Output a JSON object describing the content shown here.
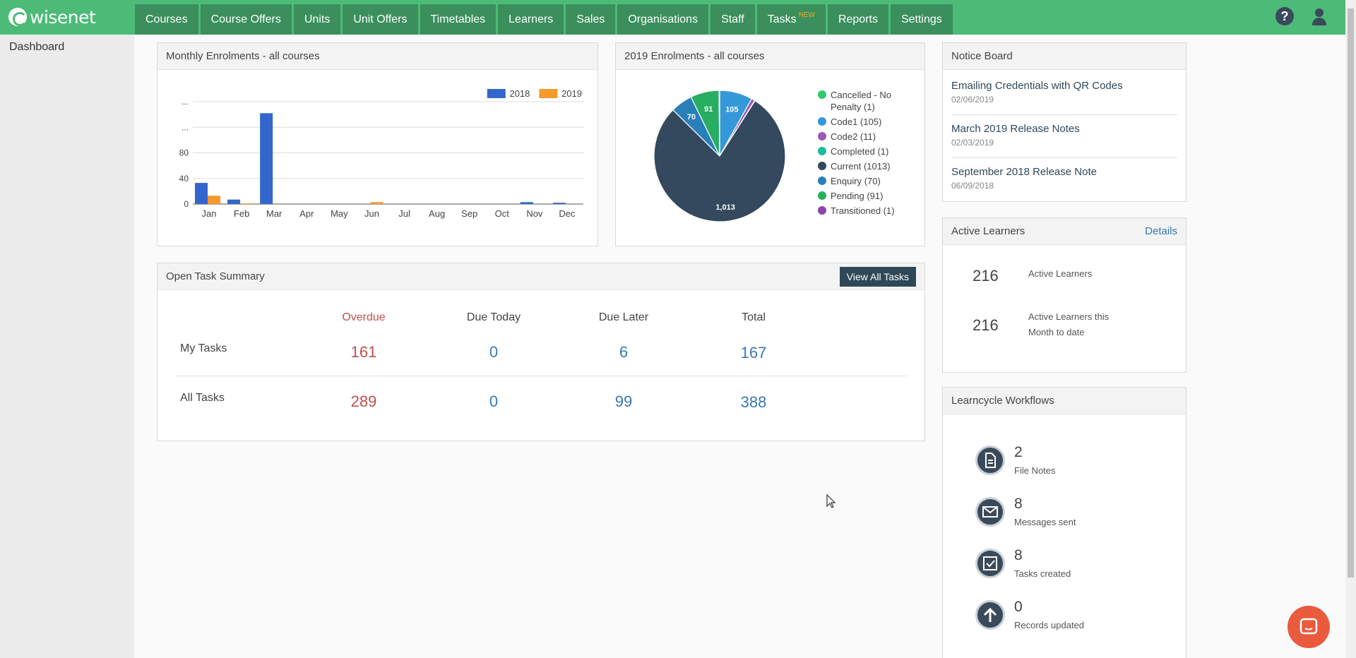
{
  "brand": {
    "name": "wisenet"
  },
  "nav": {
    "items": [
      "Courses",
      "Course Offers",
      "Units",
      "Unit Offers",
      "Timetables",
      "Learners",
      "Sales",
      "Organisations",
      "Staff",
      "Tasks",
      "Reports",
      "Settings"
    ],
    "tasks_badge": "NEW"
  },
  "header_icons": {
    "help": "help-icon",
    "user": "user-icon"
  },
  "sidebar": {
    "dashboard": "Dashboard"
  },
  "monthly": {
    "title": "Monthly Enrolments - all courses",
    "chart_data": {
      "type": "bar",
      "categories": [
        "Jan",
        "Feb",
        "Mar",
        "Apr",
        "May",
        "Jun",
        "Jul",
        "Aug",
        "Sep",
        "Oct",
        "Nov",
        "Dec"
      ],
      "series": [
        {
          "name": "2018",
          "color": "#3366cc",
          "values": [
            33,
            7,
            142,
            0,
            0,
            0,
            0,
            0,
            0,
            0,
            3,
            2
          ]
        },
        {
          "name": "2019",
          "color": "#f5992e",
          "values": [
            13,
            1,
            0,
            0,
            0,
            3,
            0,
            0,
            0,
            0,
            0,
            0
          ]
        }
      ],
      "y_ticks": [
        "0",
        "40",
        "80",
        "...",
        "..."
      ],
      "y_tick_values": [
        0,
        40,
        80,
        120,
        160
      ],
      "ylim": [
        0,
        160
      ],
      "grid": true,
      "legend": "top-right"
    }
  },
  "yearly": {
    "title": "2019 Enrolments - all courses",
    "chart_data": {
      "type": "pie",
      "labels": [
        "Cancelled - No Penalty (1)",
        "Code1 (105)",
        "Code2 (11)",
        "Completed (1)",
        "Current (1013)",
        "Enquiry (70)",
        "Pending (91)",
        "Transitioned (1)"
      ],
      "values": [
        1,
        105,
        11,
        1,
        1013,
        70,
        91,
        1
      ],
      "colors": [
        "#2ecc71",
        "#3498db",
        "#9b59b6",
        "#1abc9c",
        "#34495e",
        "#2980b9",
        "#27ae60",
        "#8e44ad"
      ],
      "slice_labels": [
        "",
        "105",
        "",
        "",
        "1,013",
        "70",
        "91",
        ""
      ],
      "slice_order": [
        1,
        2,
        7,
        4,
        5,
        6,
        0,
        3
      ],
      "legend": "right"
    }
  },
  "notice": {
    "title": "Notice Board",
    "items": [
      {
        "title": "Emailing Credentials with QR Codes",
        "date": "02/06/2019"
      },
      {
        "title": "March 2019 Release Notes",
        "date": "02/03/2019"
      },
      {
        "title": "September 2018 Release Note",
        "date": "06/09/2018"
      }
    ]
  },
  "tasks": {
    "title": "Open Task Summary",
    "view_all": "View All Tasks",
    "headers": [
      "Overdue",
      "Due Today",
      "Due Later",
      "Total"
    ],
    "rows": [
      {
        "label": "My Tasks",
        "values": [
          "161",
          "0",
          "6",
          "167"
        ]
      },
      {
        "label": "All Tasks",
        "values": [
          "289",
          "0",
          "99",
          "388"
        ]
      }
    ]
  },
  "active": {
    "title": "Active Learners",
    "details": "Details",
    "rows": [
      {
        "value": "216",
        "label": "Active Learners"
      },
      {
        "value": "216",
        "label": "Active Learners this Month to date"
      }
    ]
  },
  "workflows": {
    "title": "Learncycle Workflows",
    "items": [
      {
        "icon": "file-icon",
        "value": "2",
        "label": "File Notes"
      },
      {
        "icon": "envelope-icon",
        "value": "8",
        "label": "Messages sent"
      },
      {
        "icon": "checkbox-icon",
        "value": "8",
        "label": "Tasks created"
      },
      {
        "icon": "arrow-up-icon",
        "value": "0",
        "label": "Records updated"
      }
    ]
  },
  "chat": {
    "icon": "chat-icon"
  }
}
